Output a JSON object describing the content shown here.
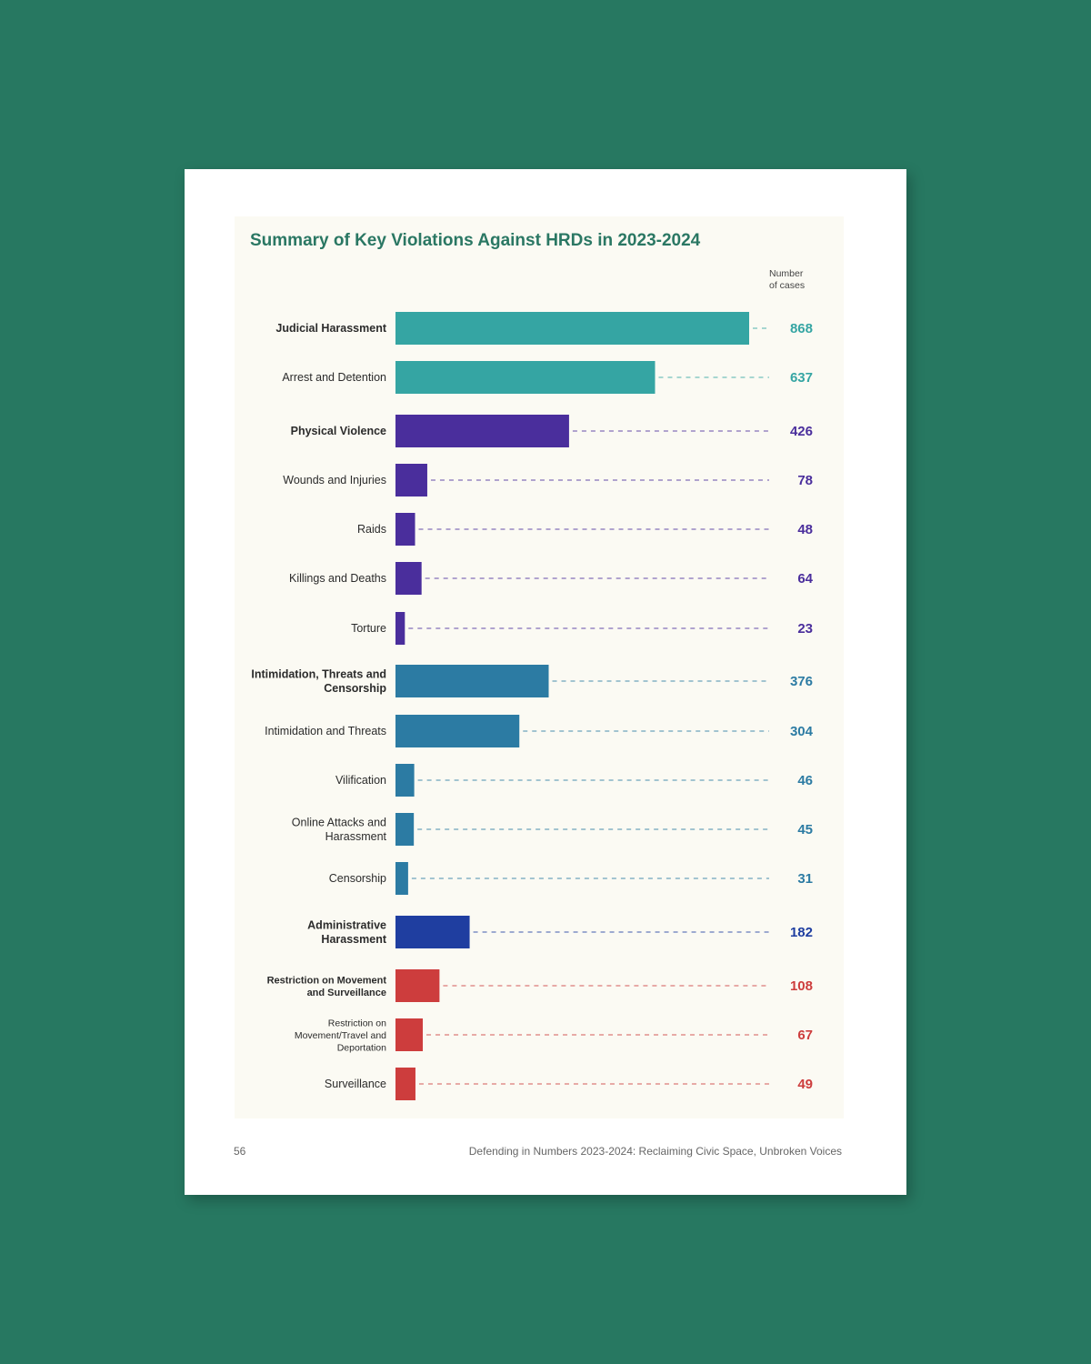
{
  "page": {
    "number": "56",
    "footer": "Defending in Numbers 2023-2024: Reclaiming Civic Space, Unbroken Voices"
  },
  "colors": {
    "background": "#277861",
    "teal": "#35a5a3",
    "purple": "#4a2e9c",
    "steel_blue": "#2c7ba3",
    "navy": "#1f3ea0",
    "red": "#cd3d3d",
    "title": "#2a7763"
  },
  "chart_data": {
    "type": "bar",
    "orientation": "horizontal",
    "title": "Summary of Key Violations Against HRDs in 2023-2024",
    "value_axis_label": "Number of cases",
    "grid": false,
    "categories": [
      {
        "label": "Judicial Harassment",
        "value": 868,
        "color": "#35a5a3",
        "bold": true
      },
      {
        "label": "Arrest and Detention",
        "value": 637,
        "color": "#35a5a3",
        "bold": false
      },
      {
        "label": "Physical Violence",
        "value": 426,
        "color": "#4a2e9c",
        "bold": true
      },
      {
        "label": "Wounds and Injuries",
        "value": 78,
        "color": "#4a2e9c",
        "bold": false
      },
      {
        "label": "Raids",
        "value": 48,
        "color": "#4a2e9c",
        "bold": false
      },
      {
        "label": "Killings and Deaths",
        "value": 64,
        "color": "#4a2e9c",
        "bold": false
      },
      {
        "label": "Torture",
        "value": 23,
        "color": "#4a2e9c",
        "bold": false
      },
      {
        "label": "Intimidation, Threats and Censorship",
        "value": 376,
        "color": "#2c7ba3",
        "bold": true
      },
      {
        "label": "Intimidation and Threats",
        "value": 304,
        "color": "#2c7ba3",
        "bold": false
      },
      {
        "label": "Vilification",
        "value": 46,
        "color": "#2c7ba3",
        "bold": false
      },
      {
        "label": "Online Attacks and Harassment",
        "value": 45,
        "color": "#2c7ba3",
        "bold": false
      },
      {
        "label": "Censorship",
        "value": 31,
        "color": "#2c7ba3",
        "bold": false
      },
      {
        "label": "Administrative Harassment",
        "value": 182,
        "color": "#1f3ea0",
        "bold": true
      },
      {
        "label": "Restriction on Movement and Surveillance",
        "value": 108,
        "color": "#cd3d3d",
        "bold": true
      },
      {
        "label": "Restriction on Movement/Travel and Deportation",
        "value": 67,
        "color": "#cd3d3d",
        "bold": false
      },
      {
        "label": "Surveillance",
        "value": 49,
        "color": "#cd3d3d",
        "bold": false
      }
    ]
  }
}
